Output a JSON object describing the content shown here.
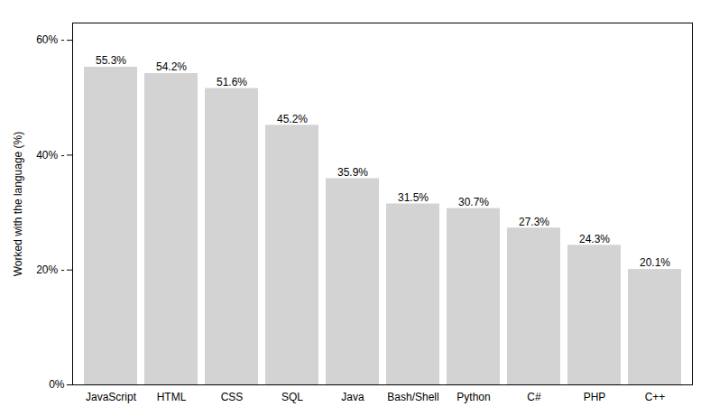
{
  "chart_data": {
    "type": "bar",
    "categories": [
      "JavaScript",
      "HTML",
      "CSS",
      "SQL",
      "Java",
      "Bash/Shell",
      "Python",
      "C#",
      "PHP",
      "C++"
    ],
    "values": [
      55.3,
      54.2,
      51.6,
      45.2,
      35.9,
      31.5,
      30.7,
      27.3,
      24.3,
      20.1
    ],
    "value_labels": [
      "55.3%",
      "54.2%",
      "51.6%",
      "45.2%",
      "35.9%",
      "31.5%",
      "30.7%",
      "27.3%",
      "24.3%",
      "20.1%"
    ],
    "data_labels": true,
    "color": "#d3d3d3",
    "ylabel": "Worked with the language (%)",
    "ylim": [
      0,
      63
    ],
    "yticks": [
      {
        "value": 0,
        "label": "0%"
      },
      {
        "value": 20,
        "label": "20% -"
      },
      {
        "value": 40,
        "label": "40% -"
      },
      {
        "value": 60,
        "label": "60% -"
      }
    ],
    "grid": false
  }
}
